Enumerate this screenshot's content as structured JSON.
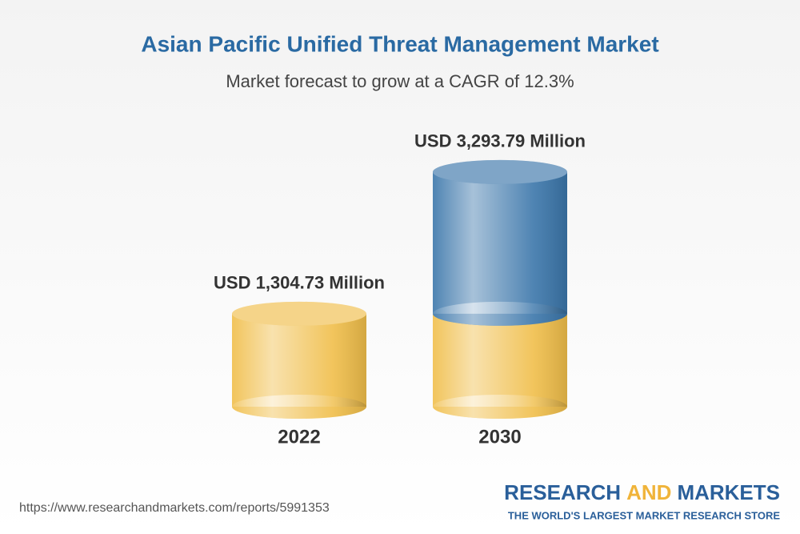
{
  "chart_data": {
    "type": "bar",
    "title": "Asian Pacific Unified Threat Management Market",
    "subtitle": "Market forecast to grow at a CAGR of 12.3%",
    "categories": [
      "2022",
      "2030"
    ],
    "values": [
      1304.73,
      3293.79
    ],
    "value_labels": [
      "USD 1,304.73 Million",
      "USD 3,293.79 Million"
    ],
    "colors": [
      "#f0be4a",
      "#3b76aa"
    ]
  },
  "footer": {
    "source": "https://www.researchandmarkets.com/reports/5991353",
    "brand_parts": [
      "RESEARCH",
      "AND",
      "MARKETS"
    ],
    "tagline": "THE WORLD'S LARGEST MARKET RESEARCH STORE"
  }
}
